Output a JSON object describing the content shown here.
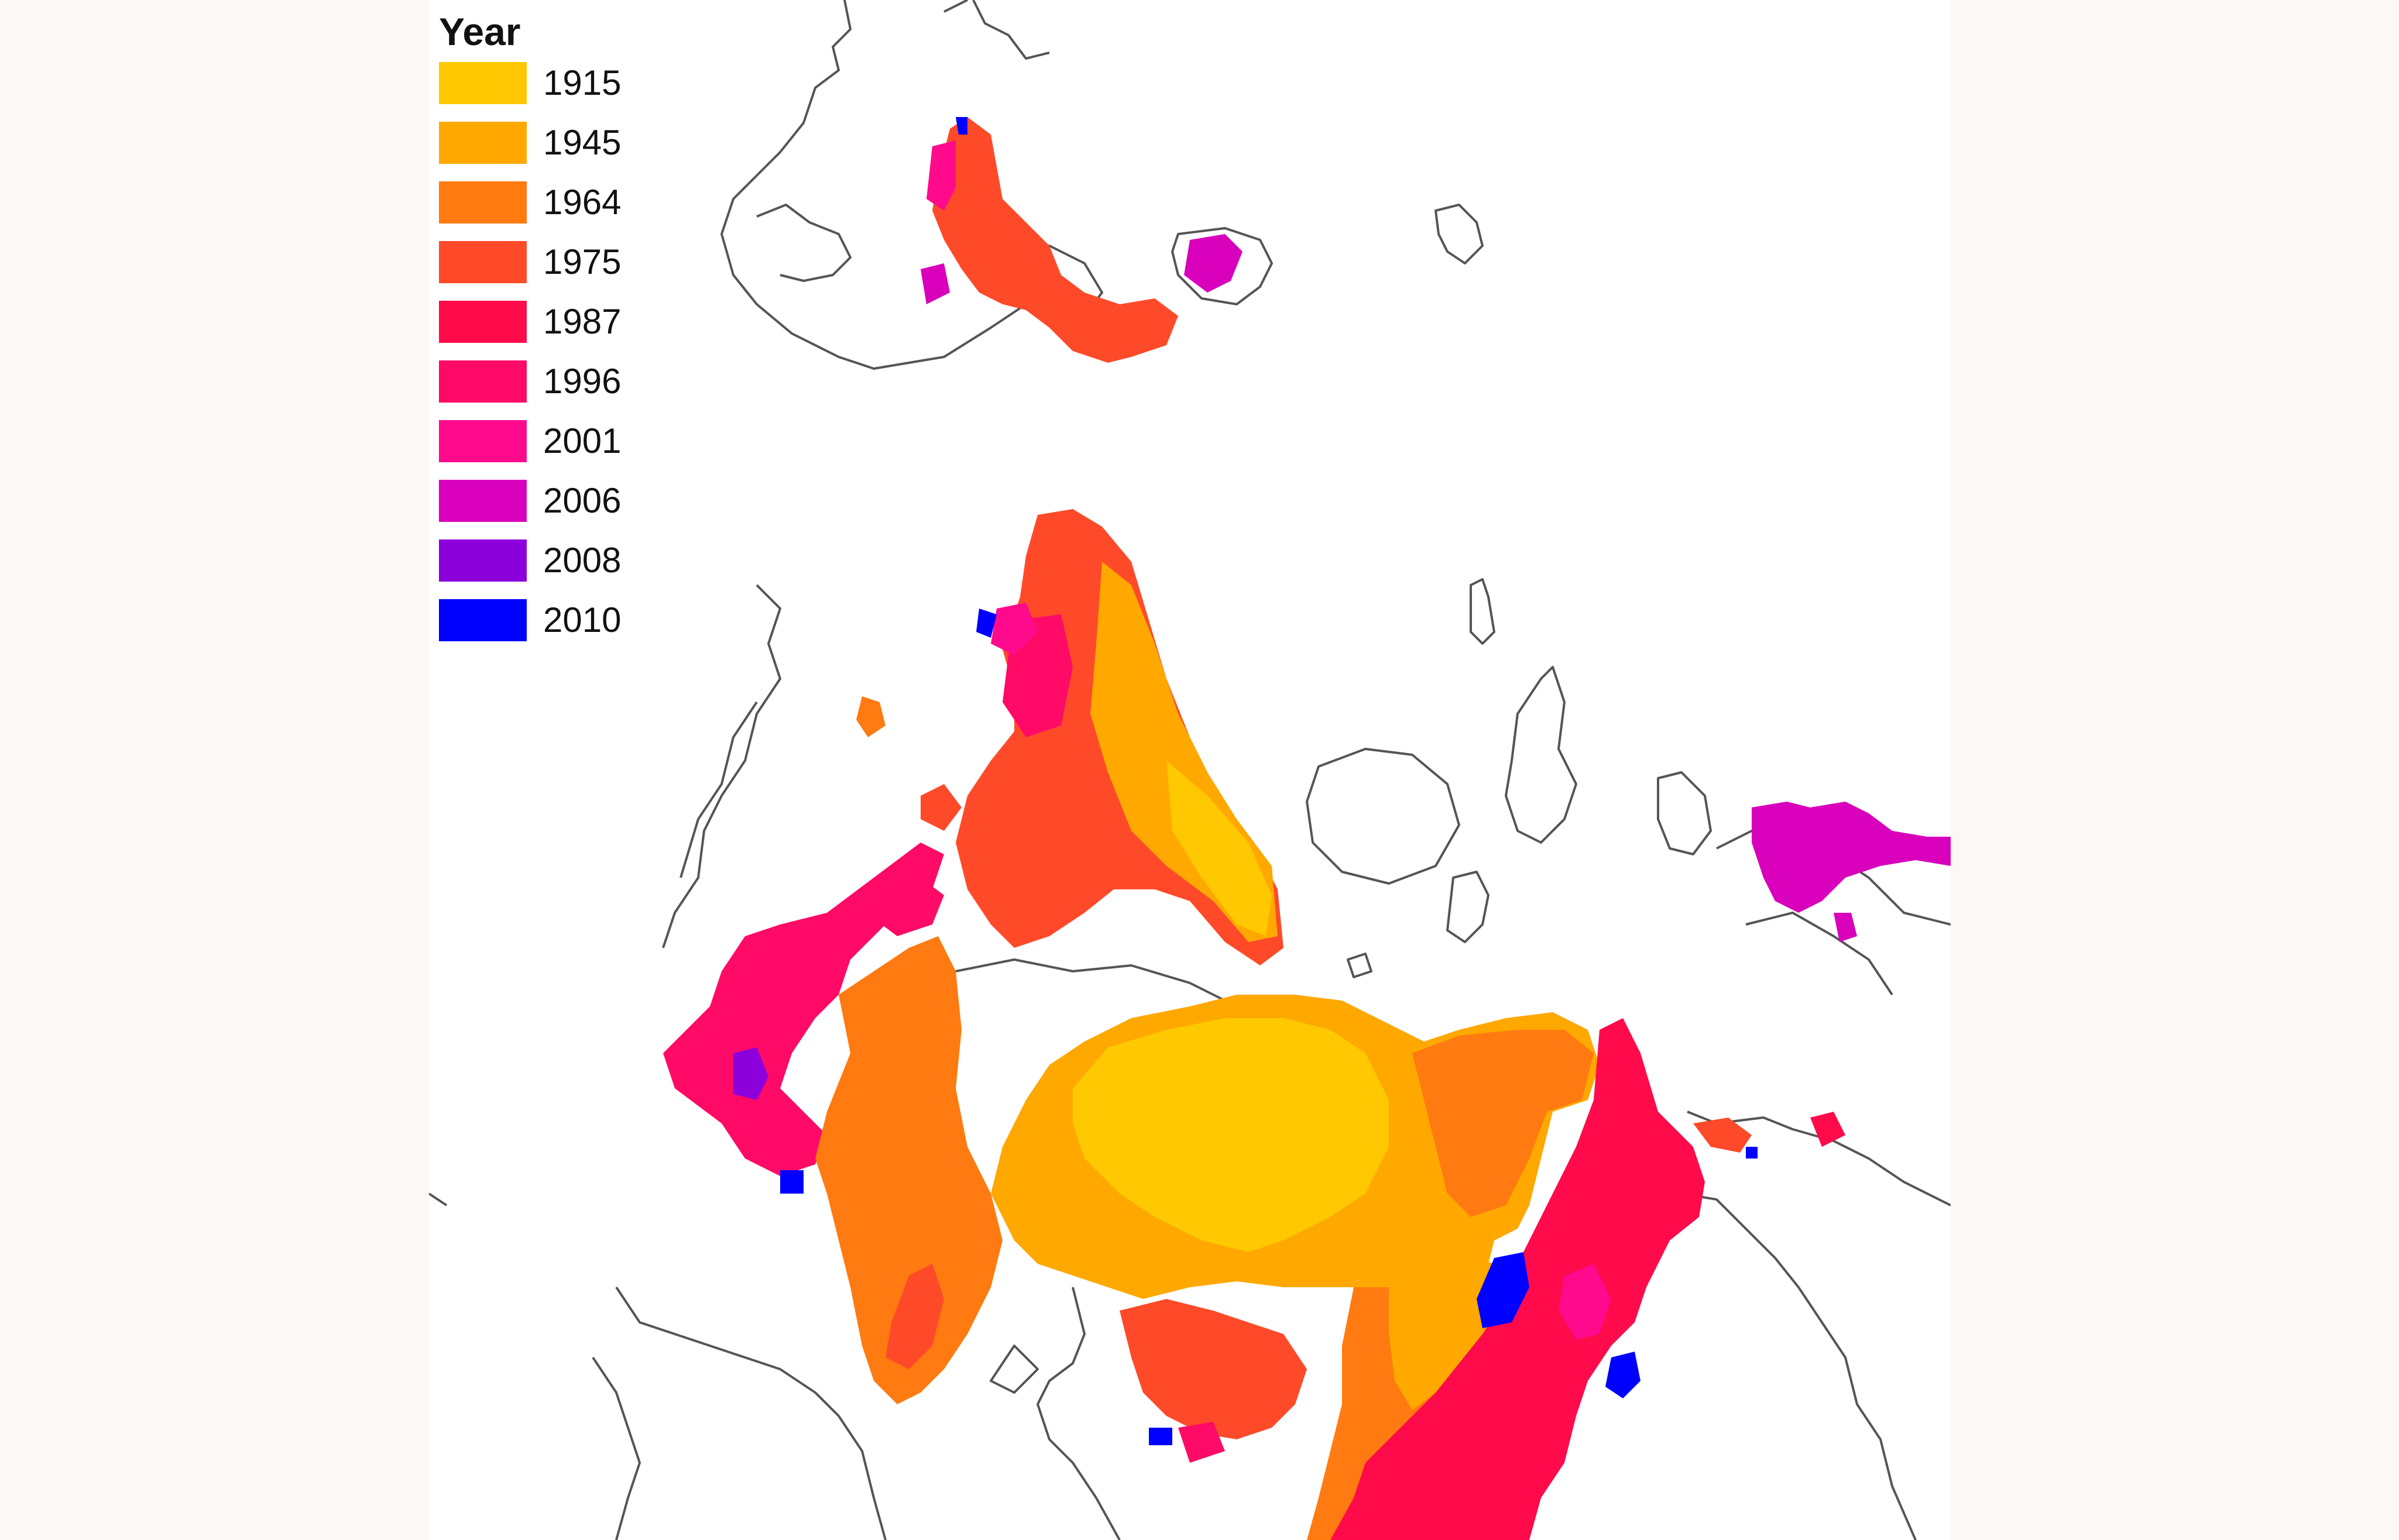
{
  "legend": {
    "title": "Year",
    "items": [
      {
        "label": "1915",
        "color": "#ffc800"
      },
      {
        "label": "1945",
        "color": "#ffa800"
      },
      {
        "label": "1964",
        "color": "#ff7a10"
      },
      {
        "label": "1975",
        "color": "#ff4a2a"
      },
      {
        "label": "1987",
        "color": "#ff0a4a"
      },
      {
        "label": "1996",
        "color": "#ff0a66"
      },
      {
        "label": "2001",
        "color": "#ff0a8c"
      },
      {
        "label": "2006",
        "color": "#d800bb"
      },
      {
        "label": "2008",
        "color": "#8c00dc"
      },
      {
        "label": "2010",
        "color": "#0000ff"
      }
    ]
  },
  "colors": {
    "coastline": "#555555",
    "land": "#ffffff",
    "page_background": "#fcf8f5"
  }
}
